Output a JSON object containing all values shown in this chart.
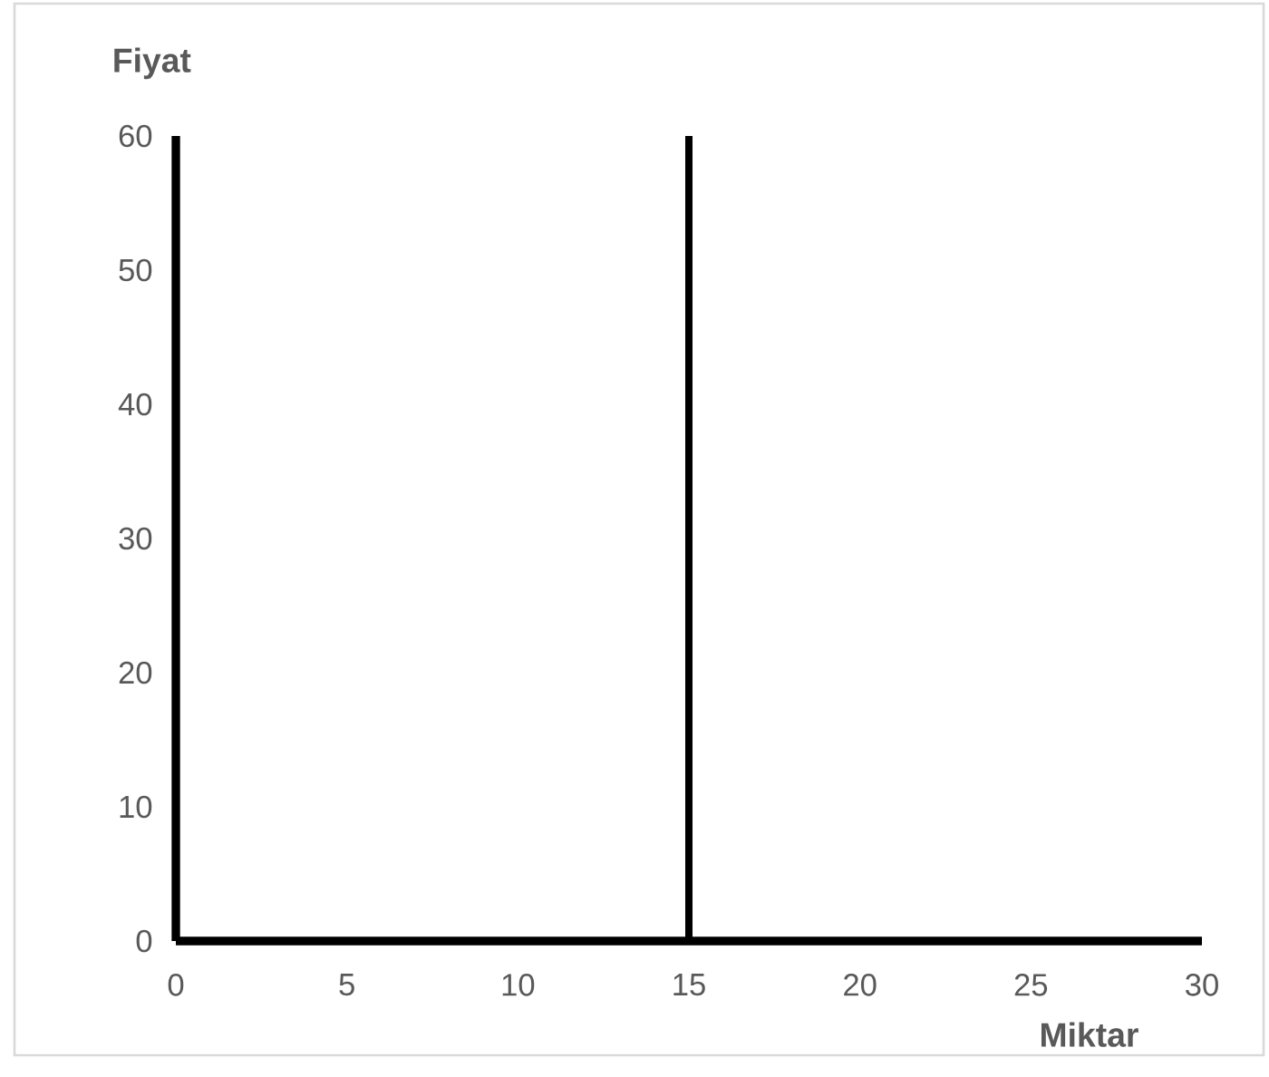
{
  "chart_data": {
    "type": "line",
    "xlabel": "Miktar",
    "ylabel": "Fiyat",
    "xlim": [
      0,
      30
    ],
    "xticks": [
      0,
      5,
      10,
      15,
      20,
      25,
      30
    ],
    "ylim": [
      0,
      60
    ],
    "yticks": [
      0,
      10,
      20,
      30,
      40,
      50,
      60
    ],
    "ref_lines": [
      {
        "axis": "x",
        "value": 15,
        "color": "#000000"
      }
    ]
  }
}
